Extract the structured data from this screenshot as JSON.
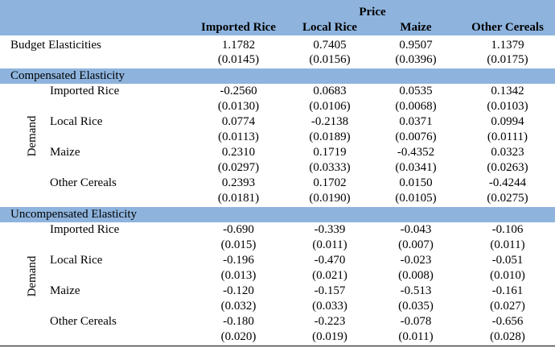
{
  "header": {
    "price_label": "Price",
    "columns": [
      "Imported Rice",
      "Local Rice",
      "Maize",
      "Other Cereals"
    ]
  },
  "budget": {
    "label": "Budget Elasticities",
    "values": [
      "1.1782",
      "0.7405",
      "0.9507",
      "1.1379"
    ],
    "se": [
      "(0.0145)",
      "(0.0156)",
      "(0.0396)",
      "(0.0175)"
    ]
  },
  "compensated": {
    "title": "Compensated Elasticity",
    "demand_label": "Demand",
    "rows": [
      {
        "label": "Imported Rice",
        "values": [
          "-0.2560",
          "0.0683",
          "0.0535",
          "0.1342"
        ],
        "se": [
          "(0.0130)",
          "(0.0106)",
          "(0.0068)",
          "(0.0103)"
        ]
      },
      {
        "label": "Local Rice",
        "values": [
          "0.0774",
          "-0.2138",
          "0.0371",
          "0.0994"
        ],
        "se": [
          "(0.0113)",
          "(0.0189)",
          "(0.0076)",
          "(0.0111)"
        ]
      },
      {
        "label": "Maize",
        "values": [
          "0.2310",
          "0.1719",
          "-0.4352",
          "0.0323"
        ],
        "se": [
          "(0.0297)",
          "(0.0333)",
          "(0.0341)",
          "(0.0263)"
        ]
      },
      {
        "label": "Other Cereals",
        "values": [
          "0.2393",
          "0.1702",
          "0.0150",
          "-0.4244"
        ],
        "se": [
          "(0.0181)",
          "(0.0190)",
          "(0.0105)",
          "(0.0275)"
        ]
      }
    ]
  },
  "uncompensated": {
    "title": "Uncompensated Elasticity",
    "demand_label": "Demand",
    "rows": [
      {
        "label": "Imported Rice",
        "values": [
          "-0.690",
          "-0.339",
          "-0.043",
          "-0.106"
        ],
        "se": [
          "(0.015)",
          "(0.011)",
          "(0.007)",
          "(0.011)"
        ]
      },
      {
        "label": "Local Rice",
        "values": [
          "-0.196",
          "-0.470",
          "-0.023",
          "-0.051"
        ],
        "se": [
          "(0.013)",
          "(0.021)",
          "(0.008)",
          "(0.010)"
        ]
      },
      {
        "label": "Maize",
        "values": [
          "-0.120",
          "-0.157",
          "-0.513",
          "-0.161"
        ],
        "se": [
          "(0.032)",
          "(0.033)",
          "(0.035)",
          "(0.027)"
        ]
      },
      {
        "label": "Other Cereals",
        "values": [
          "-0.180",
          "-0.223",
          "-0.078",
          "-0.656"
        ],
        "se": [
          "(0.020)",
          "(0.019)",
          "(0.011)",
          "(0.028)"
        ]
      }
    ]
  },
  "colors": {
    "header_band": "#8eb4de"
  }
}
